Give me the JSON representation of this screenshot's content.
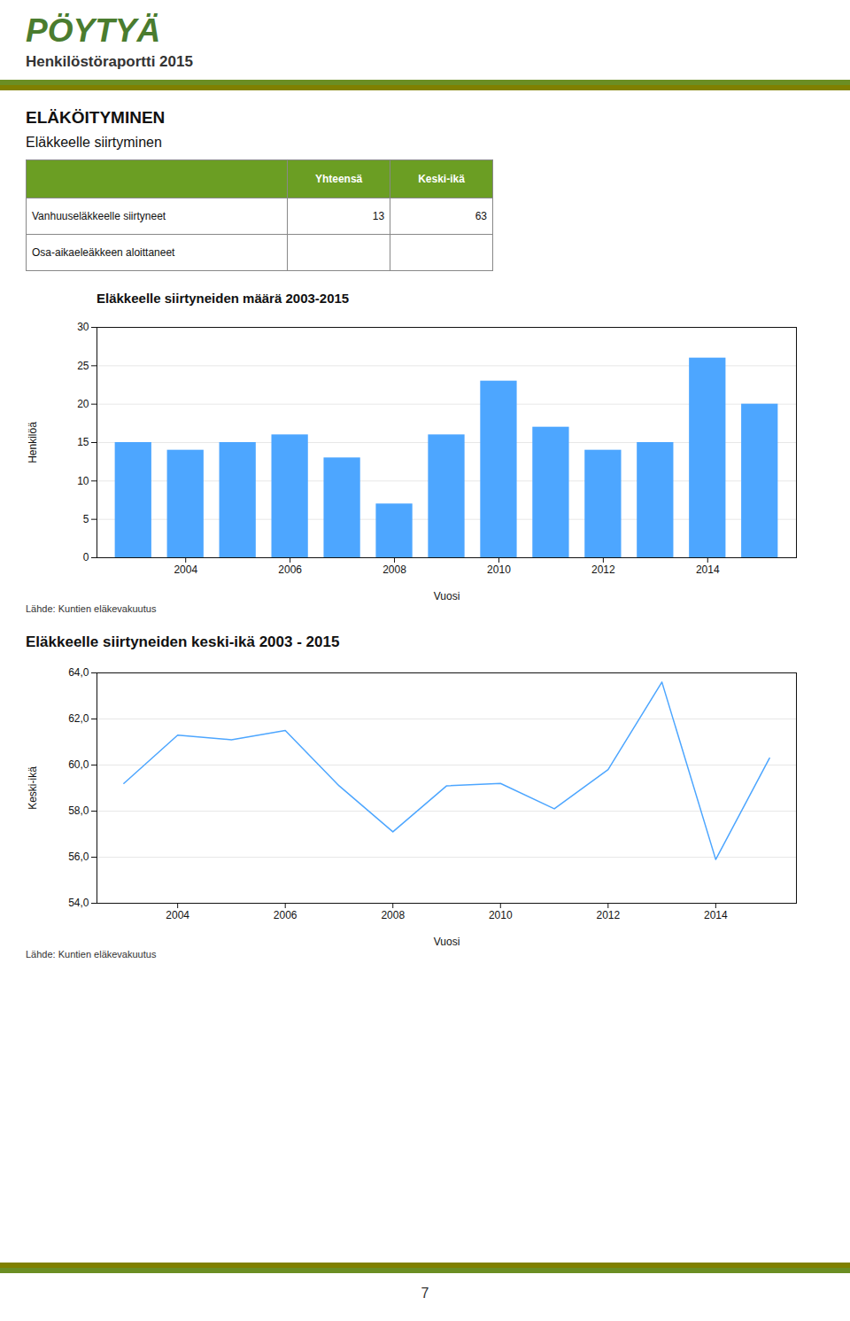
{
  "page_title": "PÖYTYÄ",
  "page_subtitle": "Henkilöstöraportti 2015",
  "section_title": "ELÄKÖITYMINEN",
  "subsection_title": "Eläkkeelle siirtyminen",
  "table": {
    "headers": [
      "Yhteensä",
      "Keski-ikä"
    ],
    "rows": [
      {
        "label": "Vanhuuseläkkeelle siirtyneet",
        "values": [
          13,
          63
        ]
      },
      {
        "label": "Osa-aikaeleäkkeen aloittaneet",
        "values": [
          null,
          null
        ]
      }
    ]
  },
  "page_number": "7",
  "chart_data": [
    {
      "type": "bar",
      "title": "Eläkkeelle siirtyneiden määrä 2003-2015",
      "x": [
        2003,
        2004,
        2005,
        2006,
        2007,
        2008,
        2009,
        2010,
        2011,
        2012,
        2013,
        2014,
        2015
      ],
      "values": [
        15,
        14,
        15,
        16,
        13,
        7,
        16,
        23,
        17,
        14,
        15,
        26,
        20
      ],
      "color": "#4da6ff",
      "xlabel": "Vuosi",
      "ylabel": "Henkilöä",
      "xlim": [
        2002.3,
        2015.7
      ],
      "xticks": [
        2004,
        2006,
        2008,
        2010,
        2012,
        2014
      ],
      "ylim": [
        0,
        30
      ],
      "yticks": [
        0,
        5,
        10,
        15,
        20,
        25,
        30
      ],
      "grid": true,
      "source": "Lähde: Kuntien eläkevakuutus"
    },
    {
      "type": "line",
      "title": "Eläkkeelle siirtyneiden keski-ikä 2003 - 2015",
      "x": [
        2003,
        2004,
        2005,
        2006,
        2007,
        2008,
        2009,
        2010,
        2011,
        2012,
        2013,
        2014,
        2015
      ],
      "values": [
        59.2,
        61.3,
        61.1,
        61.5,
        59.1,
        57.1,
        59.1,
        59.2,
        58.1,
        59.8,
        63.6,
        55.9,
        60.3
      ],
      "color": "#4da6ff",
      "xlabel": "Vuosi",
      "ylabel": "Keski-ikä",
      "xlim": [
        2002.5,
        2015.5
      ],
      "xticks": [
        2004,
        2006,
        2008,
        2010,
        2012,
        2014
      ],
      "ylim": [
        54.0,
        64.0
      ],
      "yticks": [
        {
          "value": 54.0,
          "label": "54,0"
        },
        {
          "value": 56.0,
          "label": "56,0"
        },
        {
          "value": 58.0,
          "label": "58,0"
        },
        {
          "value": 60.0,
          "label": "60,0"
        },
        {
          "value": 62.0,
          "label": "62,0"
        },
        {
          "value": 64.0,
          "label": "64,0"
        }
      ],
      "grid": true,
      "source": "Lähde: Kuntien eläkevakuutus"
    }
  ]
}
